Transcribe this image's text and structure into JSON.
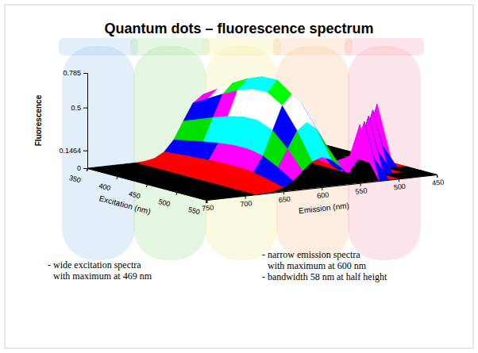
{
  "chart_data": {
    "type": "surface",
    "title": "Quantum dots – fluorescence spectrum",
    "x_label": "Emission (nm)",
    "y_label": "Excitation (nm)",
    "z_label": "Fluorescence",
    "x": [
      450,
      462.5,
      475,
      487.5,
      500,
      512.5,
      525,
      537.5,
      550,
      562.5,
      575,
      587.5,
      600,
      612.5,
      625,
      637.5,
      650,
      662.5,
      675,
      687.5,
      700,
      712.5,
      725,
      737.5,
      750
    ],
    "y": [
      350,
      375,
      400,
      425,
      450,
      475,
      500,
      525,
      550
    ],
    "values": [
      [
        0,
        0,
        0,
        0,
        0,
        0,
        0.005,
        0.02,
        0.065,
        0.155,
        0.3,
        0.44,
        0.5,
        0.44,
        0.3,
        0.155,
        0.065,
        0.02,
        0.005,
        0,
        0,
        0,
        0,
        0,
        0
      ],
      [
        0,
        0,
        0,
        0,
        0,
        0,
        0.006,
        0.023,
        0.075,
        0.18,
        0.348,
        0.51,
        0.58,
        0.51,
        0.348,
        0.18,
        0.075,
        0.023,
        0.006,
        0,
        0,
        0,
        0,
        0,
        0
      ],
      [
        0,
        0,
        0,
        0,
        0,
        0,
        0.007,
        0.026,
        0.086,
        0.205,
        0.396,
        0.581,
        0.66,
        0.581,
        0.396,
        0.205,
        0.086,
        0.026,
        0.007,
        0,
        0,
        0,
        0,
        0,
        0
      ],
      [
        0,
        0,
        0,
        0,
        0,
        0,
        0.007,
        0.029,
        0.095,
        0.226,
        0.438,
        0.642,
        0.73,
        0.642,
        0.438,
        0.226,
        0.095,
        0.029,
        0.007,
        0,
        0,
        0,
        0,
        0,
        0
      ],
      [
        0.45,
        0.15,
        0,
        0,
        0,
        0,
        0.008,
        0.031,
        0.101,
        0.242,
        0.468,
        0.686,
        0.78,
        0.686,
        0.468,
        0.242,
        0.101,
        0.031,
        0.008,
        0,
        0,
        0,
        0,
        0,
        0
      ],
      [
        0,
        0.15,
        0.45,
        0.15,
        0,
        0,
        0.008,
        0.031,
        0.102,
        0.243,
        0.471,
        0.691,
        0.785,
        0.691,
        0.471,
        0.243,
        0.102,
        0.031,
        0.008,
        0,
        0,
        0,
        0,
        0,
        0
      ],
      [
        0,
        0,
        0,
        0.15,
        0.45,
        0.15,
        0.007,
        0.028,
        0.091,
        0.217,
        0.42,
        0.616,
        0.7,
        0.616,
        0.42,
        0.217,
        0.091,
        0.028,
        0.007,
        0,
        0,
        0,
        0,
        0,
        0
      ],
      [
        0,
        0,
        0,
        0,
        0,
        0.15,
        0.455,
        0.17,
        0.065,
        0.155,
        0.3,
        0.44,
        0.5,
        0.44,
        0.3,
        0.155,
        0.065,
        0.02,
        0.005,
        0,
        0,
        0,
        0,
        0,
        0
      ],
      [
        0,
        0,
        0,
        0,
        0,
        0,
        0,
        0.16,
        0.483,
        0.228,
        0.15,
        0.22,
        0.25,
        0.22,
        0.15,
        0.078,
        0.033,
        0.01,
        0.003,
        0,
        0,
        0,
        0,
        0,
        0
      ]
    ],
    "xlim": [
      750,
      450
    ],
    "ylim": [
      350,
      550
    ],
    "zlim": [
      0,
      0.785
    ],
    "xticks": [
      750,
      700,
      650,
      600,
      550,
      500,
      450
    ],
    "yticks": [
      350,
      400,
      450,
      500,
      550
    ],
    "zticks": [
      0,
      0.1464,
      0.5,
      0.785
    ],
    "annotations": [
      [
        "- wide excitation spectra",
        "with maximum at 469 nm"
      ],
      [
        "- narrow emission spectra",
        "with maximum at 600 nm",
        "- bandwidth 58 nm at half height"
      ]
    ]
  }
}
